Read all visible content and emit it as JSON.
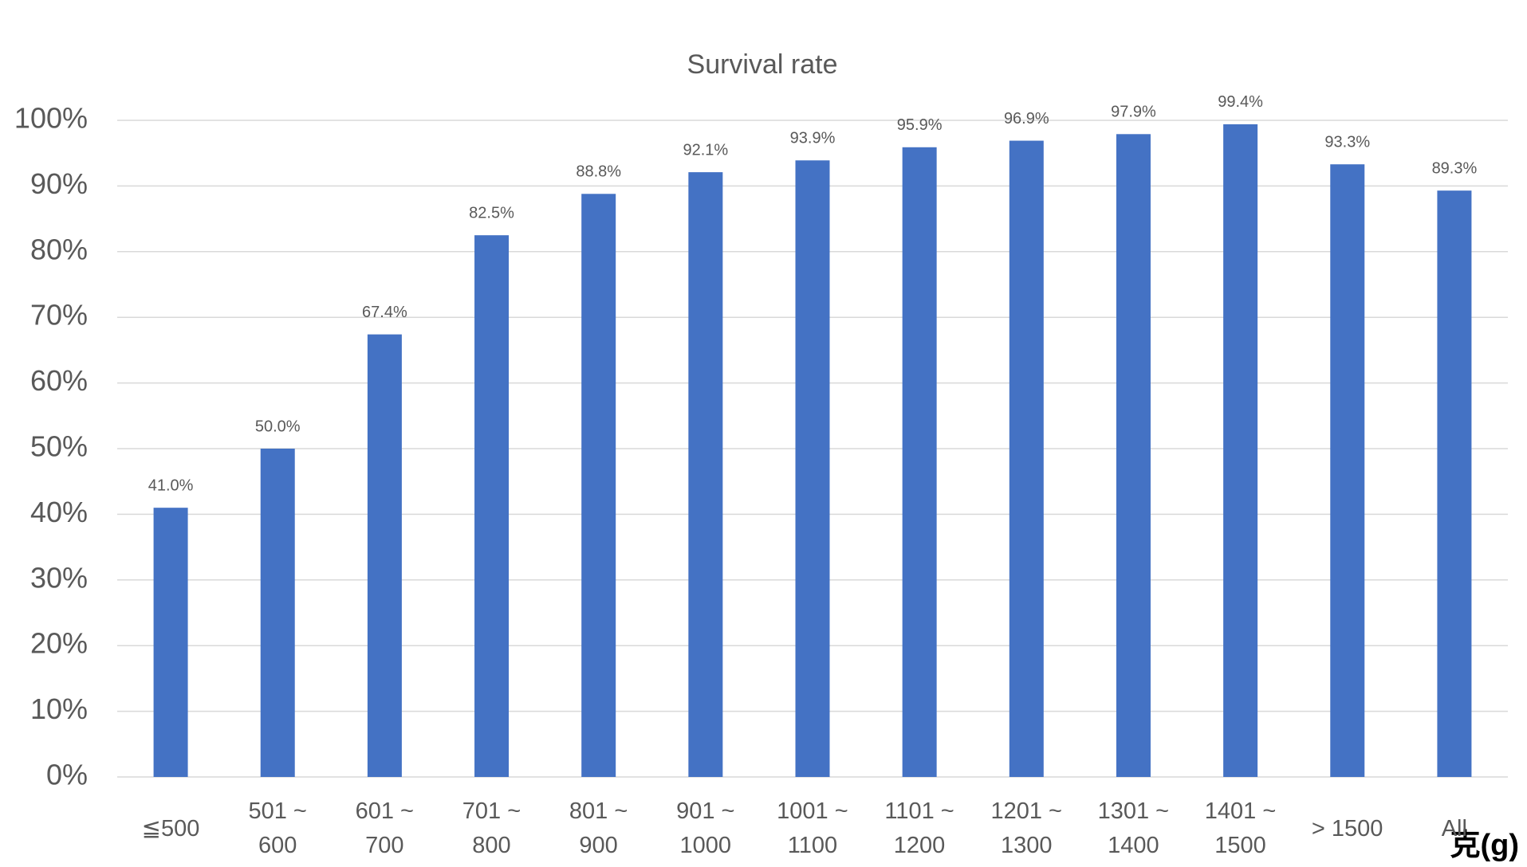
{
  "chart_data": {
    "type": "bar",
    "title": "Survival rate",
    "categories": [
      "≦500",
      "501 ~\n600",
      "601 ~\n700",
      "701 ~\n800",
      "801 ~\n900",
      "901 ~\n1000",
      "1001 ~\n1100",
      "1101 ~\n1200",
      "1201 ~\n1300",
      "1301 ~\n1400",
      "1401 ~\n1500",
      "> 1500",
      "All"
    ],
    "values": [
      41.0,
      50.0,
      67.4,
      82.5,
      88.8,
      92.1,
      93.9,
      95.9,
      96.9,
      97.9,
      99.4,
      93.3,
      89.3
    ],
    "value_labels": [
      "41.0%",
      "50.0%",
      "67.4%",
      "82.5%",
      "88.8%",
      "92.1%",
      "93.9%",
      "95.9%",
      "96.9%",
      "97.9%",
      "99.4%",
      "93.3%",
      "89.3%"
    ],
    "color": "#4472c4",
    "xlabel": "克(g)",
    "ylim": [
      0,
      100
    ],
    "yticks": [
      {
        "value": 0,
        "label": "0%"
      },
      {
        "value": 10,
        "label": "10%"
      },
      {
        "value": 20,
        "label": "20%"
      },
      {
        "value": 30,
        "label": "30%"
      },
      {
        "value": 40,
        "label": "40%"
      },
      {
        "value": 50,
        "label": "50%"
      },
      {
        "value": 60,
        "label": "60%"
      },
      {
        "value": 70,
        "label": "70%"
      },
      {
        "value": 80,
        "label": "80%"
      },
      {
        "value": 90,
        "label": "90%"
      },
      {
        "value": 100,
        "label": "100%"
      }
    ],
    "grid": true
  }
}
